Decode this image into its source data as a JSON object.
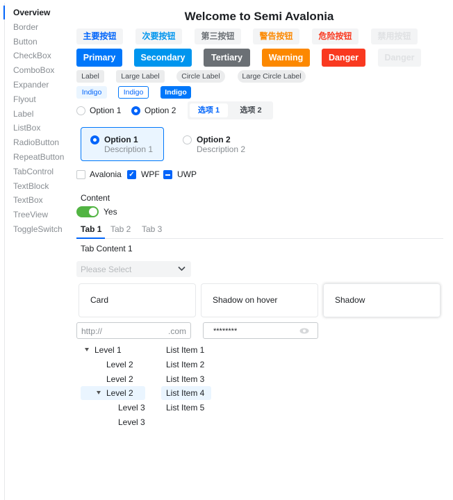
{
  "sidebar": {
    "items": [
      "Overview",
      "Border",
      "Button",
      "CheckBox",
      "ComboBox",
      "Expander",
      "Flyout",
      "Label",
      "ListBox",
      "RadioButton",
      "RepeatButton",
      "TabControl",
      "TextBlock",
      "TextBox",
      "TreeView",
      "ToggleSwitch"
    ],
    "selected": "Overview"
  },
  "title": "Welcome to Semi Avalonia",
  "light_buttons": [
    {
      "label": "主要按钮",
      "color": "#0064fa"
    },
    {
      "label": "次要按钮",
      "color": "#0095ee"
    },
    {
      "label": "第三按钮",
      "color": "#6b7075"
    },
    {
      "label": "警告按钮",
      "color": "#fc8800"
    },
    {
      "label": "危险按钮",
      "color": "#f93920"
    },
    {
      "label": "禁用按钮",
      "color": "#dfe1e3"
    }
  ],
  "solid_buttons": [
    {
      "label": "Primary",
      "color": "#0077fa"
    },
    {
      "label": "Secondary",
      "color": "#0095ee"
    },
    {
      "label": "Tertiary",
      "color": "#6b7075"
    },
    {
      "label": "Warning",
      "color": "#fc8800"
    },
    {
      "label": "Danger",
      "color": "#f93920"
    },
    {
      "label": "Danger",
      "color": "#f3f4f5",
      "disabled": true
    }
  ],
  "labels": [
    "Label",
    "Large Label",
    "Circle Label",
    "Large Circle Label"
  ],
  "indigo_tags": [
    "Indigo",
    "Indigo",
    "Indigo"
  ],
  "radios": [
    {
      "label": "Option 1",
      "checked": false
    },
    {
      "label": "Option 2",
      "checked": true
    }
  ],
  "segmented": [
    {
      "label": "选项 1",
      "selected": true
    },
    {
      "label": "选项 2",
      "selected": false
    }
  ],
  "radio_cards": [
    {
      "title": "Option 1",
      "desc": "Description 1",
      "checked": true
    },
    {
      "title": "Option 2",
      "desc": "Description 2",
      "checked": false
    }
  ],
  "checkboxes": [
    {
      "label": "Avalonia",
      "state": "unchecked"
    },
    {
      "label": "WPF",
      "state": "checked"
    },
    {
      "label": "UWP",
      "state": "indeterminate"
    }
  ],
  "toggle": {
    "header": "Content",
    "label": "Yes",
    "on": true,
    "color": "#52b443"
  },
  "tabs": {
    "items": [
      "Tab 1",
      "Tab 2",
      "Tab 3"
    ],
    "selected": "Tab 1",
    "content": "Tab Content 1"
  },
  "combo": {
    "placeholder": "Please Select"
  },
  "cards": [
    "Card",
    "Shadow on hover",
    "Shadow"
  ],
  "url_input": {
    "prefix": "http://",
    "suffix": ".com"
  },
  "password": {
    "value": "********"
  },
  "tree": [
    {
      "label": "Level 1",
      "expanded": true
    },
    {
      "label": "Level 2"
    },
    {
      "label": "Level 2"
    },
    {
      "label": "Level 2",
      "expanded": true,
      "selected": true
    },
    {
      "label": "Level 3"
    },
    {
      "label": "Level 3"
    }
  ],
  "list": {
    "items": [
      "List Item 1",
      "List Item 2",
      "List Item 3",
      "List Item 4",
      "List Item 5"
    ],
    "selected": "List Item 4"
  }
}
